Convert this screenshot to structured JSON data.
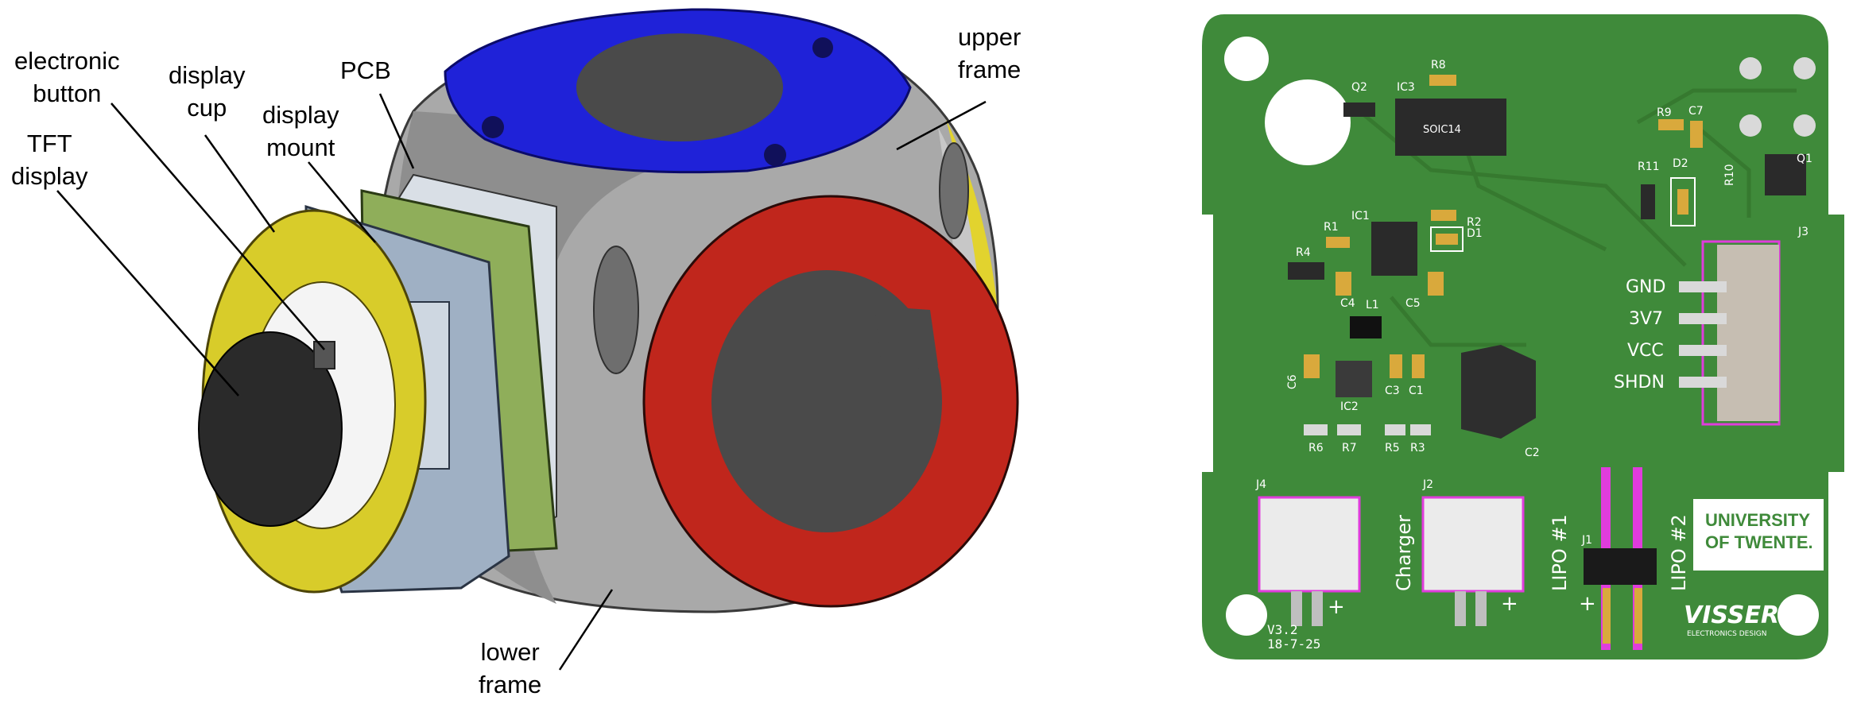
{
  "assembly": {
    "labels": {
      "electronic_button": "electronic\nbutton",
      "display_cup": "display\ncup",
      "tft_display": "TFT\ndisplay",
      "display_mount": "display\nmount",
      "pcb": "PCB",
      "upper_frame": "upper\nframe",
      "lower_frame": "lower\nframe"
    },
    "colors": {
      "upper_frame": "#1f22d8",
      "side_ring": "#c0261c",
      "body": "#a7a7a7",
      "display_cup": "#d8cc2a",
      "display": "#2a2a2a",
      "pcb": "#8fae5a",
      "mount": "#9fb0c4"
    }
  },
  "board": {
    "colors": {
      "board": "#3f8a3a",
      "silk": "#ffffff",
      "pad": "#d9a93c",
      "courtyard": "#e03cdc",
      "ic": "#2a2a2a"
    },
    "pin_labels": [
      "GND",
      "3V7",
      "VCC",
      "SHDN"
    ],
    "refs": {
      "q2": "Q2",
      "ic3": "IC3",
      "r8": "R8",
      "r9": "R9",
      "c7": "C7",
      "q1": "Q1",
      "r11": "R11",
      "d2": "D2",
      "r10": "R10",
      "ic1": "IC1",
      "r1": "R1",
      "r2": "R2",
      "d1": "D1",
      "r4": "R4",
      "c4": "C4",
      "c5": "C5",
      "j3": "J3",
      "l1": "L1",
      "c6": "C6",
      "ic2": "IC2",
      "c3": "C3",
      "c1": "C1",
      "r6": "R6",
      "r7": "R7",
      "r5": "R5",
      "r3": "R3",
      "c2": "C2",
      "j4": "J4",
      "j2": "J2",
      "j1": "J1"
    },
    "ic3_marking": "SOIC14",
    "connector_labels": {
      "charger": "Charger",
      "lipo1": "LIPO #1",
      "lipo2": "LIPO #2"
    },
    "logo": {
      "line1": "UNIVERSITY",
      "line2": "OF TWENTE."
    },
    "visser": {
      "name": "VISSER",
      "sub": "ELECTRONICS DESIGN"
    },
    "version": "V3.2",
    "date": "18-7-25",
    "plus": "+"
  }
}
